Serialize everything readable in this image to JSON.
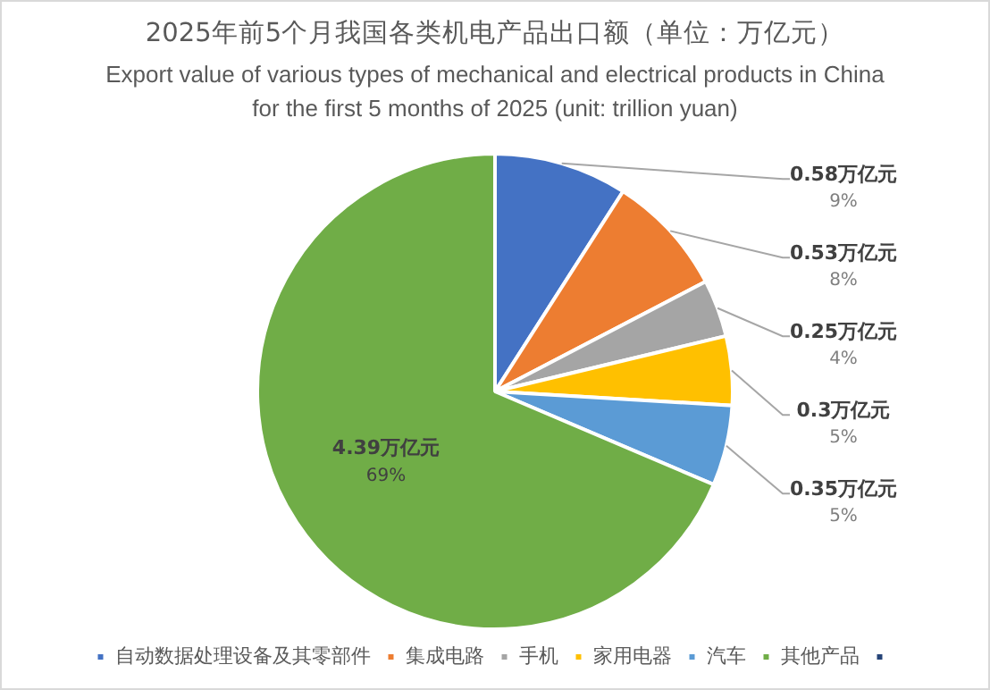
{
  "chart_data": {
    "type": "pie",
    "title": "2025年前5个月我国各类机电产品出口额（单位：万亿元）",
    "subtitle": "Export value of various types of mechanical and electrical products in China for the first 5 months of 2025 (unit: trillion yuan)",
    "categories": [
      "自动数据处理设备及其零部件",
      "集成电路",
      "手机",
      "家用电器",
      "汽车",
      "其他产品",
      null
    ],
    "values": [
      0.58,
      0.53,
      0.25,
      0.3,
      0.35,
      4.39,
      0
    ],
    "colors": [
      "#4472c4",
      "#ed7d31",
      "#a5a5a5",
      "#ffc000",
      "#5b9bd5",
      "#70ad47",
      "#264478"
    ],
    "value_labels": [
      "0.58万亿元\n9%",
      "0.53万亿元\n8%",
      "0.25万亿元\n4%",
      "0.3万亿元\n5%",
      "0.35万亿元\n5%",
      "4.39万亿元\n69%",
      null
    ],
    "legend": "bottom"
  }
}
